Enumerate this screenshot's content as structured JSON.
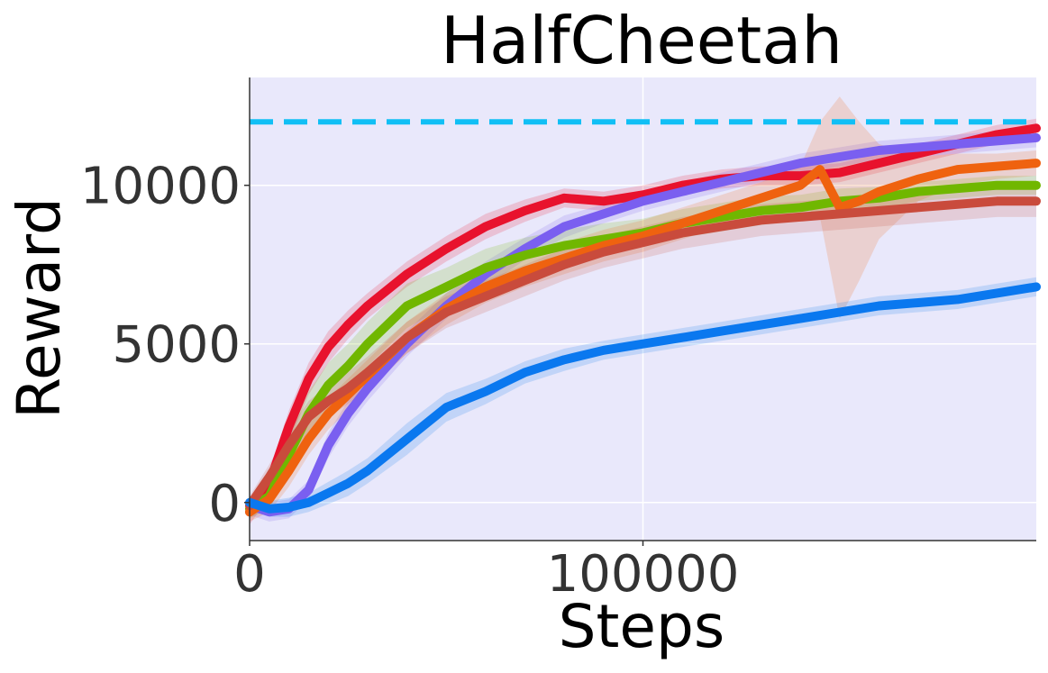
{
  "chart_data": {
    "type": "line",
    "title": "HalfCheetah",
    "xlabel": "Steps",
    "ylabel": "Reward",
    "xlim": [
      0,
      200000
    ],
    "ylim": [
      -1200,
      13400
    ],
    "x_ticks": [
      {
        "value": 0,
        "label": "0"
      },
      {
        "value": 100000,
        "label": "100000"
      }
    ],
    "y_ticks": [
      {
        "value": 0,
        "label": "0"
      },
      {
        "value": 5000,
        "label": "5000"
      },
      {
        "value": 10000,
        "label": "10000"
      }
    ],
    "grid": true,
    "background_color": "#e9e8fb",
    "reference_line": {
      "y": 12000,
      "color": "#11bff5",
      "style": "dashed"
    },
    "series": [
      {
        "name": "series-red",
        "color": "#e8122d",
        "x": [
          0,
          5000,
          10000,
          15000,
          20000,
          25000,
          30000,
          40000,
          50000,
          60000,
          70000,
          80000,
          90000,
          100000,
          110000,
          120000,
          130000,
          140000,
          150000,
          160000,
          170000,
          180000,
          190000,
          200000
        ],
        "y": [
          -300,
          600,
          2400,
          3900,
          4900,
          5600,
          6200,
          7200,
          8000,
          8700,
          9200,
          9600,
          9500,
          9700,
          10000,
          10200,
          10300,
          10300,
          10400,
          10700,
          11000,
          11300,
          11600,
          11800
        ],
        "band": [
          400,
          400,
          500,
          500,
          500,
          450,
          400,
          400,
          400,
          400,
          350,
          300,
          300,
          300,
          300,
          300,
          300,
          300,
          300,
          300,
          300,
          300,
          300,
          300
        ]
      },
      {
        "name": "series-purple",
        "color": "#7a5ff0",
        "x": [
          0,
          5000,
          10000,
          15000,
          20000,
          25000,
          30000,
          40000,
          50000,
          60000,
          70000,
          80000,
          90000,
          100000,
          110000,
          120000,
          130000,
          140000,
          150000,
          160000,
          170000,
          180000,
          190000,
          200000
        ],
        "y": [
          -100,
          -300,
          -200,
          400,
          1800,
          2800,
          3600,
          5000,
          6200,
          7200,
          8000,
          8700,
          9100,
          9500,
          9800,
          10100,
          10400,
          10700,
          10900,
          11100,
          11200,
          11300,
          11400,
          11500
        ],
        "band": [
          300,
          300,
          300,
          300,
          400,
          400,
          400,
          400,
          400,
          400,
          350,
          350,
          300,
          300,
          300,
          300,
          300,
          300,
          300,
          300,
          300,
          300,
          300,
          300
        ]
      },
      {
        "name": "series-green",
        "color": "#70b700",
        "x": [
          0,
          5000,
          10000,
          15000,
          20000,
          25000,
          30000,
          40000,
          50000,
          60000,
          70000,
          80000,
          90000,
          100000,
          110000,
          120000,
          130000,
          140000,
          150000,
          160000,
          170000,
          180000,
          190000,
          200000
        ],
        "y": [
          -200,
          200,
          1500,
          2800,
          3700,
          4300,
          5000,
          6200,
          6800,
          7400,
          7800,
          8100,
          8300,
          8500,
          8800,
          9000,
          9200,
          9300,
          9500,
          9600,
          9800,
          9900,
          10000,
          10000
        ],
        "band": [
          300,
          400,
          600,
          700,
          700,
          700,
          700,
          700,
          600,
          600,
          550,
          500,
          500,
          450,
          450,
          450,
          450,
          400,
          400,
          350,
          300,
          300,
          300,
          300
        ]
      },
      {
        "name": "series-orange",
        "color": "#ef620f",
        "x": [
          0,
          5000,
          10000,
          15000,
          20000,
          25000,
          30000,
          40000,
          50000,
          60000,
          70000,
          80000,
          90000,
          100000,
          110000,
          120000,
          130000,
          140000,
          145000,
          150000,
          155000,
          160000,
          170000,
          180000,
          190000,
          200000
        ],
        "y": [
          -300,
          100,
          1000,
          2000,
          2800,
          3400,
          4000,
          5200,
          6100,
          6800,
          7300,
          7700,
          8100,
          8400,
          8800,
          9200,
          9600,
          10000,
          10500,
          9300,
          9500,
          9800,
          10200,
          10500,
          10600,
          10700
        ],
        "band": [
          300,
          400,
          500,
          500,
          500,
          500,
          500,
          500,
          500,
          500,
          500,
          500,
          500,
          500,
          500,
          500,
          500,
          600,
          1500,
          3500,
          2500,
          1500,
          700,
          500,
          400,
          400
        ]
      },
      {
        "name": "series-brown",
        "color": "#c94b3c",
        "x": [
          0,
          5000,
          10000,
          15000,
          20000,
          25000,
          30000,
          40000,
          50000,
          60000,
          70000,
          80000,
          90000,
          100000,
          110000,
          120000,
          130000,
          140000,
          150000,
          160000,
          170000,
          180000,
          190000,
          200000
        ],
        "y": [
          -100,
          800,
          1800,
          2700,
          3200,
          3600,
          4100,
          5200,
          6000,
          6500,
          7000,
          7500,
          7900,
          8200,
          8500,
          8700,
          8900,
          9000,
          9100,
          9200,
          9300,
          9400,
          9500,
          9500
        ],
        "band": [
          300,
          400,
          500,
          500,
          500,
          500,
          500,
          500,
          500,
          500,
          500,
          500,
          500,
          500,
          500,
          500,
          500,
          500,
          500,
          500,
          500,
          500,
          500,
          500
        ]
      },
      {
        "name": "series-blue",
        "color": "#0a78ef",
        "x": [
          0,
          5000,
          10000,
          15000,
          20000,
          25000,
          30000,
          40000,
          50000,
          60000,
          70000,
          80000,
          90000,
          100000,
          110000,
          120000,
          130000,
          140000,
          150000,
          160000,
          170000,
          180000,
          190000,
          200000
        ],
        "y": [
          0,
          -200,
          -150,
          0,
          300,
          600,
          1000,
          2000,
          3000,
          3500,
          4100,
          4500,
          4800,
          5000,
          5200,
          5400,
          5600,
          5800,
          6000,
          6200,
          6300,
          6400,
          6600,
          6800
        ],
        "band": [
          200,
          250,
          300,
          300,
          350,
          400,
          400,
          500,
          450,
          400,
          350,
          350,
          300,
          300,
          300,
          300,
          300,
          300,
          300,
          300,
          300,
          300,
          300,
          300
        ]
      }
    ]
  }
}
